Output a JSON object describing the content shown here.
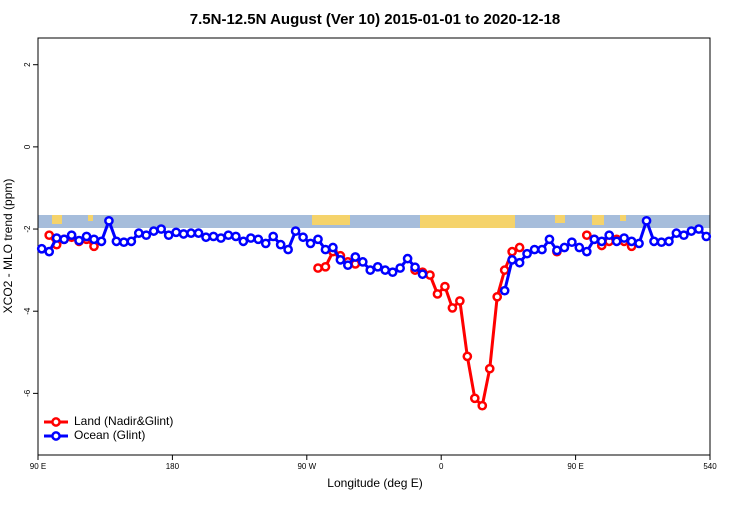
{
  "chart_data": {
    "type": "line",
    "title": "7.5N-12.5N August (Ver 10)   2015-01-01 to 2020-12-18",
    "x_label": "Longitude (deg E)",
    "y_label": "XCO2 - MLO trend (ppm)",
    "x": [
      92.5,
      97.5,
      102.5,
      107.5,
      112.5,
      117.5,
      122.5,
      127.5,
      132.5,
      137.5,
      142.5,
      147.5,
      152.5,
      157.5,
      162.5,
      167.5,
      172.5,
      177.5,
      182.5,
      187.5,
      192.5,
      197.5,
      202.5,
      207.5,
      212.5,
      217.5,
      222.5,
      227.5,
      232.5,
      237.5,
      242.5,
      247.5,
      252.5,
      257.5,
      262.5,
      267.5,
      272.5,
      277.5,
      282.5,
      287.5,
      292.5,
      297.5,
      302.5,
      307.5,
      312.5,
      317.5,
      322.5,
      327.5,
      332.5,
      337.5,
      342.5,
      347.5,
      352.5,
      357.5,
      362.5,
      367.5,
      372.5,
      377.5,
      382.5,
      387.5,
      392.5,
      397.5,
      402.5,
      407.5,
      412.5,
      417.5,
      422.5,
      427.5,
      432.5,
      437.5,
      442.5,
      447.5,
      452.5,
      457.5,
      462.5,
      467.5,
      472.5,
      477.5,
      482.5,
      487.5,
      492.5,
      497.5,
      502.5,
      507.5,
      512.5,
      517.5,
      522.5,
      527.5,
      532.5,
      537.5
    ],
    "series": [
      {
        "name": "Land (Nadir&Glint)",
        "color": "#ff0000",
        "values": [
          null,
          -2.15,
          -2.38,
          -2.25,
          -2.2,
          -2.3,
          -2.25,
          -2.42,
          null,
          null,
          null,
          null,
          null,
          null,
          null,
          null,
          null,
          null,
          null,
          null,
          null,
          null,
          null,
          null,
          null,
          null,
          null,
          null,
          null,
          null,
          null,
          null,
          null,
          null,
          null,
          null,
          null,
          -2.95,
          -2.92,
          -2.55,
          -2.65,
          -2.8,
          -2.85,
          null,
          null,
          null,
          null,
          null,
          null,
          null,
          -3.0,
          -3.05,
          -3.12,
          -3.58,
          -3.4,
          -3.92,
          -3.75,
          -5.1,
          -6.12,
          -6.3,
          -5.4,
          -3.65,
          -3.0,
          -2.55,
          -2.45,
          null,
          null,
          null,
          null,
          -2.55,
          null,
          null,
          null,
          -2.15,
          -2.25,
          -2.4,
          -2.3,
          -2.25,
          -2.3,
          -2.42,
          null,
          null,
          null,
          null,
          null,
          null,
          null,
          null,
          null,
          null
        ]
      },
      {
        "name": "Ocean (Glint)",
        "color": "#0000ff",
        "values": [
          -2.48,
          -2.55,
          -2.22,
          -2.25,
          -2.15,
          -2.28,
          -2.18,
          -2.25,
          -2.3,
          -1.8,
          -2.3,
          -2.32,
          -2.3,
          -2.1,
          -2.15,
          -2.05,
          -2.0,
          -2.15,
          -2.08,
          -2.12,
          -2.1,
          -2.1,
          -2.2,
          -2.18,
          -2.22,
          -2.15,
          -2.18,
          -2.3,
          -2.22,
          -2.25,
          -2.35,
          -2.18,
          -2.38,
          -2.5,
          -2.05,
          -2.2,
          -2.35,
          -2.25,
          -2.5,
          -2.45,
          -2.75,
          -2.88,
          -2.68,
          -2.8,
          -3.0,
          -2.92,
          -3.0,
          -3.05,
          -2.95,
          -2.72,
          -2.93,
          -3.1,
          null,
          null,
          null,
          null,
          null,
          null,
          null,
          null,
          null,
          null,
          -3.5,
          -2.75,
          -2.82,
          -2.6,
          -2.5,
          -2.5,
          -2.25,
          -2.52,
          -2.45,
          -2.32,
          -2.45,
          -2.55,
          -2.25,
          -2.3,
          -2.15,
          -2.3,
          -2.22,
          -2.3,
          -2.35,
          -1.8,
          -2.3,
          -2.32,
          -2.3,
          -2.1,
          -2.15,
          -2.05,
          -2.0,
          -2.18
        ]
      }
    ],
    "xlim": [
      90,
      540
    ],
    "xticks": [
      {
        "value": 90,
        "label": "90 E"
      },
      180,
      {
        "value": 270,
        "label": "90 W"
      },
      {
        "value": 360,
        "label": "0"
      },
      {
        "value": 450,
        "label": "90 E"
      },
      540
    ],
    "ylim": [
      -7.5,
      2.65
    ],
    "yticks": [
      -6,
      -4,
      -2,
      0,
      2
    ],
    "grid": false,
    "legend": "bottom-left"
  }
}
